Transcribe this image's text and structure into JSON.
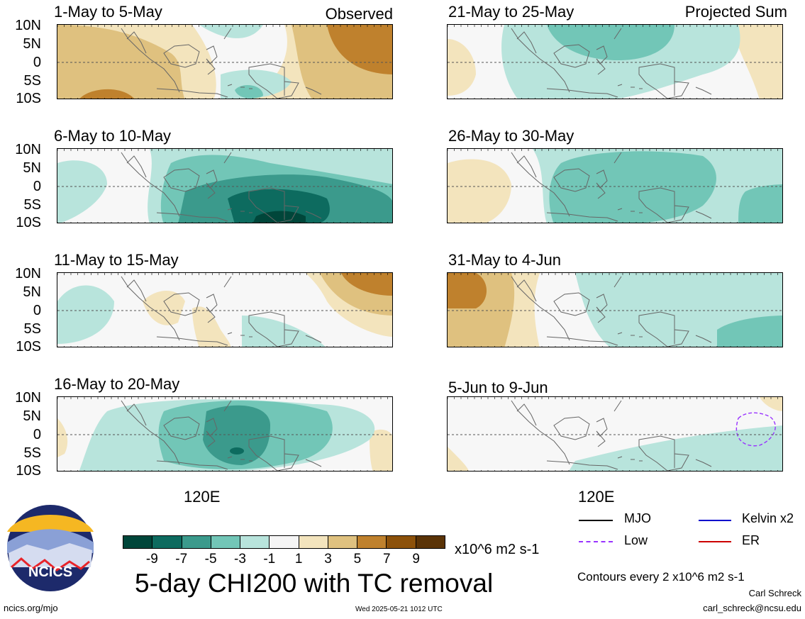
{
  "header": {
    "left_tag": "Observed",
    "right_tag": "Projected Sum"
  },
  "panels": [
    {
      "id": "p1",
      "title": "1-May to 5-May"
    },
    {
      "id": "p2",
      "title": "6-May to 10-May"
    },
    {
      "id": "p3",
      "title": "11-May to 15-May"
    },
    {
      "id": "p4",
      "title": "16-May to 20-May"
    },
    {
      "id": "p5",
      "title": "21-May to 25-May"
    },
    {
      "id": "p6",
      "title": "26-May to 30-May"
    },
    {
      "id": "p7",
      "title": "31-May to 4-Jun"
    },
    {
      "id": "p8",
      "title": "5-Jun to 9-Jun"
    }
  ],
  "yaxis": {
    "labels": [
      "10N",
      "5N",
      "0",
      "5S",
      "10S"
    ]
  },
  "xaxis": {
    "label": "120E"
  },
  "colorbar": {
    "colors": [
      "#00463a",
      "#0d6b5f",
      "#3b9a8c",
      "#72c6b7",
      "#b8e4dc",
      "#f5f5f5",
      "#f3e4bd",
      "#dfc17f",
      "#bf812d",
      "#8c510a",
      "#5a3306"
    ],
    "ticks": [
      "-9",
      "-7",
      "-5",
      "-3",
      "-1",
      "1",
      "3",
      "5",
      "7",
      "9"
    ],
    "units": "x10^6 m2 s-1"
  },
  "title": "5-day CHI200 with TC removal",
  "legend": [
    {
      "label": "MJO",
      "color": "#000000",
      "style": "solid"
    },
    {
      "label": "Kelvin x2",
      "color": "#0000cc",
      "style": "solid"
    },
    {
      "label": "Low",
      "color": "#9933ff",
      "style": "dashed"
    },
    {
      "label": "ER",
      "color": "#cc0000",
      "style": "solid"
    }
  ],
  "contour_note": "Contours every 2 x10^6 m2 s-1",
  "logo_text": "NCICS",
  "footer": {
    "left": "ncics.org/mjo",
    "center": "Wed 2025-05-21 1012 UTC",
    "author": "Carl Schreck",
    "email": "carl_schreck@ncsu.edu"
  }
}
